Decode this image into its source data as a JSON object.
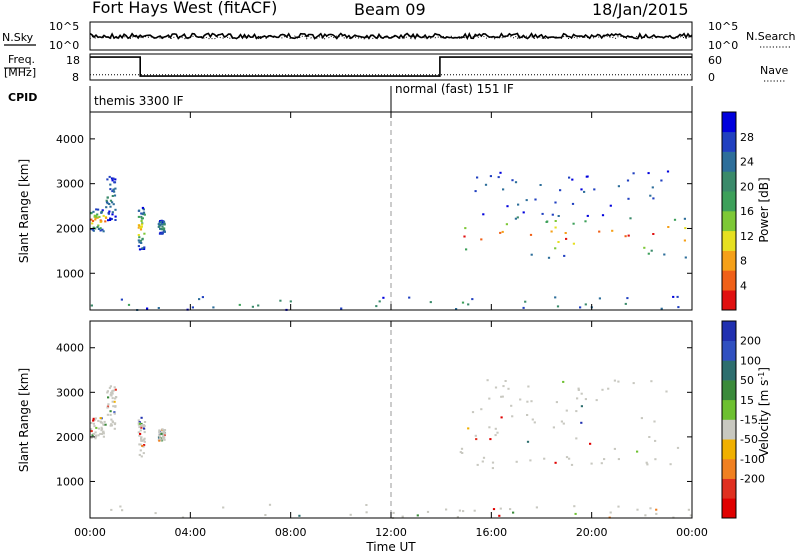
{
  "header": {
    "station": "Fort Hays West (fitACF)",
    "beam": "Beam 09",
    "date": "18/Jan/2015"
  },
  "chart_data": [
    {
      "type": "line",
      "panel": "noise",
      "left_label": "N.Sky",
      "right_label": "N.Search",
      "left_ticks": [
        "10^5",
        "10^0"
      ],
      "right_ticks": [
        "10^5",
        "10^0"
      ],
      "series": [
        {
          "name": "N.Sky",
          "style": "solid",
          "level": 0.5
        },
        {
          "name": "N.Search",
          "style": "dotted",
          "level": 0.45
        }
      ]
    },
    {
      "type": "line",
      "panel": "frequency",
      "left_label_lines": [
        "Freq.",
        "[MHz]"
      ],
      "right_label": "Nave",
      "left_ticks": [
        18,
        8
      ],
      "right_ticks": [
        60,
        0
      ],
      "left_ylim": [
        8,
        18
      ],
      "right_ylim": [
        0,
        60
      ],
      "freq_series": {
        "name": "Freq.",
        "x_hours": [
          0,
          2.0,
          2.0,
          13.95,
          13.95,
          24
        ],
        "values": [
          16.8,
          16.8,
          9.5,
          9.5,
          16.8,
          16.8
        ]
      },
      "nave_series": {
        "name": "Nave",
        "value": 12
      }
    },
    {
      "type": "table",
      "panel": "cpid",
      "label": "CPID",
      "segments": [
        {
          "start_hour": 0,
          "end_hour": 12,
          "text": "themis 3300 IF"
        },
        {
          "start_hour": 12,
          "end_hour": 24,
          "text": "normal (fast) 151 IF"
        }
      ]
    },
    {
      "type": "heatmap",
      "panel": "power",
      "ylabel": "Slant Range [km]",
      "ylim": [
        180,
        4600
      ],
      "yticks": [
        1000,
        2000,
        3000,
        4000
      ],
      "xlim": [
        0,
        24
      ],
      "colorbar": {
        "label": "Power [dB]",
        "range": [
          0,
          32
        ],
        "ticks": [
          4,
          8,
          12,
          16,
          20,
          24,
          28
        ],
        "colors": [
          "#0000dd",
          "#2040c0",
          "#2d6e9a",
          "#3a8a6a",
          "#3da05a",
          "#7dc836",
          "#e6e020",
          "#f5a018",
          "#f06018",
          "#e01010"
        ]
      },
      "echo_regions": [
        {
          "x": [
            0.0,
            0.6
          ],
          "y": [
            1950,
            2450
          ],
          "level": 0.55
        },
        {
          "x": [
            0.6,
            1.0
          ],
          "y": [
            2200,
            3200
          ],
          "level": 0.15
        },
        {
          "x": [
            1.9,
            2.15
          ],
          "y": [
            1550,
            2500
          ],
          "level": 0.45
        },
        {
          "x": [
            2.7,
            2.95
          ],
          "y": [
            1900,
            2200
          ],
          "level": 0.2
        },
        {
          "x": [
            14.6,
            23.9
          ],
          "y": [
            1300,
            2400
          ],
          "level": 0.6
        },
        {
          "x": [
            15.2,
            23.0
          ],
          "y": [
            2300,
            3300
          ],
          "level": 0.08
        },
        {
          "x": [
            0.0,
            24.0
          ],
          "y": [
            200,
            500
          ],
          "level": 0.25
        }
      ]
    },
    {
      "type": "heatmap",
      "panel": "velocity",
      "ylabel": "Slant Range [km]",
      "ylim": [
        180,
        4600
      ],
      "yticks": [
        1000,
        2000,
        3000,
        4000
      ],
      "xlim": [
        0,
        24
      ],
      "xticks": [
        "00:00",
        "04:00",
        "08:00",
        "12:00",
        "16:00",
        "20:00",
        "00:00"
      ],
      "xlabel": "Time UT",
      "colorbar": {
        "label_main": "Velocity [m s",
        "label_sup": "-1",
        "label_end": "]",
        "ticks": [
          200,
          100,
          50,
          15,
          -15,
          -50,
          -100,
          -200
        ],
        "colors": [
          "#2030b0",
          "#3050c0",
          "#2d6e6e",
          "#3a8a3a",
          "#6dc030",
          "#c8c8c0",
          "#f0b000",
          "#f08020",
          "#e03020",
          "#e00000"
        ]
      },
      "ground_scatter_color": "#c8c8c0"
    }
  ]
}
